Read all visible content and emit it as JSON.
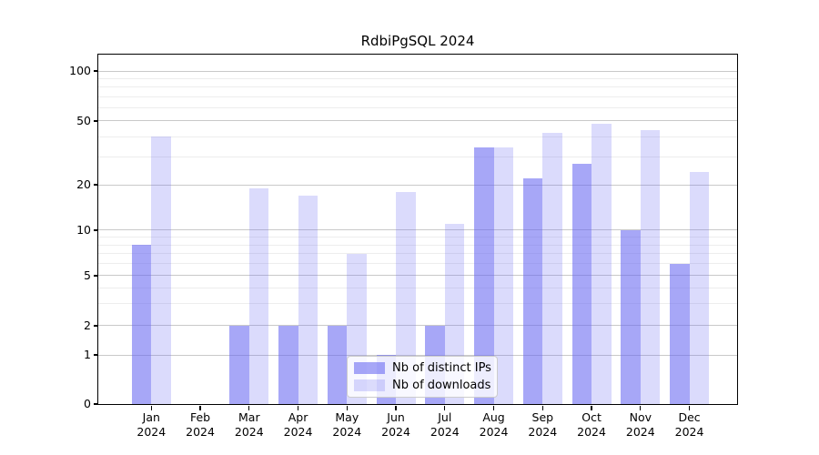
{
  "title": "RdbiPgSQL 2024",
  "chart_data": {
    "type": "bar",
    "title": "RdbiPgSQL 2024",
    "categories": [
      "Jan 2024",
      "Feb 2024",
      "Mar 2024",
      "Apr 2024",
      "May 2024",
      "Jun 2024",
      "Jul 2024",
      "Aug 2024",
      "Sep 2024",
      "Oct 2024",
      "Nov 2024",
      "Dec 2024"
    ],
    "x_tick_line1": [
      "Jan",
      "Feb",
      "Mar",
      "Apr",
      "May",
      "Jun",
      "Jul",
      "Aug",
      "Sep",
      "Oct",
      "Nov",
      "Dec"
    ],
    "x_tick_line2": "2024",
    "series": [
      {
        "name": "Nb of distinct IPs",
        "color": "rgba(104,104,242,0.58)",
        "values": [
          8,
          0,
          2,
          2,
          2,
          1,
          2,
          34,
          22,
          27,
          10,
          6
        ]
      },
      {
        "name": "Nb of downloads",
        "color": "rgba(104,104,242,0.24)",
        "values": [
          40,
          0,
          19,
          17,
          7,
          18,
          11,
          34,
          42,
          48,
          44,
          24
        ]
      }
    ],
    "xlabel": "",
    "ylabel": "",
    "y_axis": {
      "scale": "symlog",
      "major_ticks": [
        0,
        1,
        2,
        5,
        10,
        20,
        50,
        100
      ],
      "minor_ticks": [
        3,
        4,
        6,
        7,
        8,
        9,
        30,
        40,
        60,
        70,
        80,
        90
      ],
      "ylim": [
        0,
        126
      ]
    },
    "grid": true,
    "legend_position": "lower center"
  },
  "legend": {
    "items": [
      {
        "label": "Nb of distinct IPs",
        "swatch": "dark-periwinkle"
      },
      {
        "label": "Nb of downloads",
        "swatch": "light-lavender"
      }
    ]
  },
  "colors": {
    "bar_base": "#6868F2",
    "bar_distinct_ips": "rgba(104,104,242,0.58)",
    "bar_downloads": "rgba(104,104,242,0.24)",
    "grid_major": "#c9c9c9",
    "grid_minor": "#ededed",
    "axis": "#000000",
    "background": "#ffffff"
  }
}
